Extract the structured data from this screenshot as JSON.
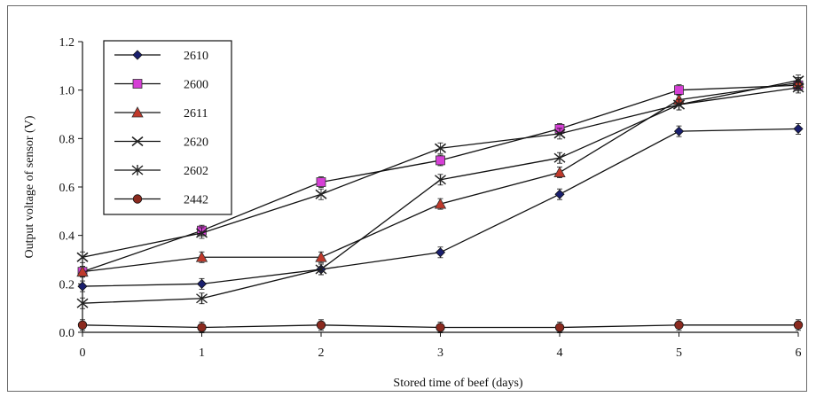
{
  "chart_data": {
    "type": "line",
    "title": "",
    "xlabel": "Stored time of beef (days)",
    "ylabel": "Output voltage of sensor (V)",
    "x": [
      0,
      1,
      2,
      3,
      4,
      5,
      6
    ],
    "xticks": [
      "0",
      "1",
      "2",
      "3",
      "4",
      "5",
      "6"
    ],
    "yticks": [
      "0.0",
      "0.2",
      "0.4",
      "0.6",
      "0.8",
      "1.0",
      "1.2"
    ],
    "ylim": [
      0,
      1.2
    ],
    "xlim": [
      0,
      6
    ],
    "grid": false,
    "legend_position": "top-left",
    "series": [
      {
        "name": "2610",
        "marker": "diamond",
        "color": "#1a1f6e",
        "values": [
          0.19,
          0.2,
          0.26,
          0.33,
          0.57,
          0.83,
          0.84
        ]
      },
      {
        "name": "2600",
        "marker": "square",
        "color": "#d63fd6",
        "values": [
          0.25,
          0.42,
          0.62,
          0.71,
          0.84,
          1.0,
          1.02
        ]
      },
      {
        "name": "2611",
        "marker": "triangle",
        "color": "#c0392b",
        "values": [
          0.25,
          0.31,
          0.31,
          0.53,
          0.66,
          0.96,
          1.03
        ]
      },
      {
        "name": "2620",
        "marker": "x",
        "color": "#222222",
        "values": [
          0.31,
          0.41,
          0.57,
          0.76,
          0.82,
          0.94,
          1.04
        ]
      },
      {
        "name": "2602",
        "marker": "asterisk",
        "color": "#222222",
        "values": [
          0.12,
          0.14,
          0.26,
          0.63,
          0.72,
          0.94,
          1.01
        ]
      },
      {
        "name": "2442",
        "marker": "circle",
        "color": "#8b2a1f",
        "values": [
          0.03,
          0.02,
          0.03,
          0.02,
          0.02,
          0.03,
          0.03
        ]
      }
    ]
  }
}
